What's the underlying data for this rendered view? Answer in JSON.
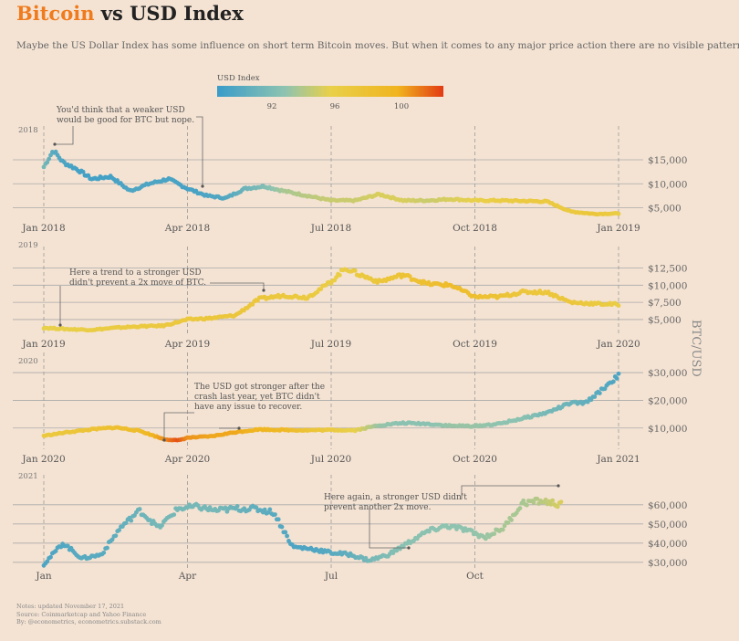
{
  "title": {
    "part1": "Bitcoin",
    "part2": " vs USD Index"
  },
  "subtitle": "Maybe the US Dollar Index has some influence on short term Bitcoin moves. But when it comes to any major price action there are no visible patterns.",
  "legend": {
    "title": "USD Index",
    "ticks": [
      "92",
      "96",
      "100"
    ],
    "colors": [
      "#3a9cc9",
      "#8ec3b0",
      "#e9d04a",
      "#f0b41f",
      "#e23a12"
    ]
  },
  "y_axis_label": "BTC/USD",
  "notes": [
    "Notes: updated November 17, 2021",
    "Source: Coinmarketcap and Yahoo Finance",
    "By: @econometrics, econometrics.substack.com"
  ],
  "chart_data": [
    {
      "type": "scatter",
      "year": "2018",
      "x_ticks": [
        "Jan 2018",
        "Apr 2018",
        "Jul 2018",
        "Oct 2018",
        "Jan 2019"
      ],
      "y_ticks": [
        "$5,000",
        "$10,000",
        "$15,000"
      ],
      "y_tick_values": [
        5000,
        10000,
        15000
      ],
      "ylim": [
        3000,
        19000
      ],
      "annotation": "You'd think that a weaker USD would be good for BTC but nope.",
      "annotation_lines": [
        "You'd think that a weaker USD",
        "would be good for BTC but nope."
      ],
      "series": [
        {
          "name": "BTC/USD",
          "x_month": [
            0,
            0.2,
            0.4,
            0.7,
            1.0,
            1.4,
            1.8,
            2.2,
            2.6,
            3.0,
            3.4,
            3.8,
            4.2,
            4.6,
            5.0,
            5.5,
            6.0,
            6.5,
            7.0,
            7.5,
            8.0,
            8.5,
            9.0,
            9.5,
            10.0,
            10.5,
            11.0,
            11.5,
            12.0
          ],
          "values": [
            13500,
            17000,
            14500,
            13000,
            11000,
            11500,
            8500,
            10000,
            11000,
            9000,
            7500,
            7000,
            9000,
            9500,
            8500,
            7500,
            6500,
            6500,
            7800,
            6500,
            6500,
            6800,
            6500,
            6500,
            6400,
            6300,
            4200,
            3700,
            3800
          ],
          "usd_index": [
            92,
            90.5,
            90,
            89.5,
            89.5,
            89.5,
            90,
            90,
            89.8,
            89.6,
            90,
            90.2,
            91.5,
            92.5,
            94,
            94.5,
            95,
            95,
            95.5,
            95.5,
            95,
            95.5,
            96,
            96.5,
            97,
            97,
            97,
            97.5,
            96.5
          ]
        }
      ]
    },
    {
      "type": "scatter",
      "year": "2019",
      "x_ticks": [
        "Jan 2019",
        "Apr 2019",
        "Jul 2019",
        "Oct 2019",
        "Jan 2020"
      ],
      "y_ticks": [
        "$5,000",
        "$7,500",
        "$10,000",
        "$12,500"
      ],
      "y_tick_values": [
        5000,
        7500,
        10000,
        12500
      ],
      "ylim": [
        3000,
        13500
      ],
      "annotation": "Here a trend to a stronger USD didn't prevent a 2x move of BTC.",
      "annotation_lines": [
        "Here a trend to a stronger USD",
        "didn't prevent a 2x move of BTC."
      ],
      "series": [
        {
          "name": "BTC/USD",
          "x_month": [
            0,
            0.5,
            1.0,
            1.5,
            2.0,
            2.5,
            3.0,
            3.5,
            4.0,
            4.5,
            5.0,
            5.5,
            6.0,
            6.3,
            6.6,
            7.0,
            7.5,
            8.0,
            8.5,
            9.0,
            9.5,
            10.0,
            10.5,
            11.0,
            11.5,
            12.0
          ],
          "values": [
            3800,
            3600,
            3500,
            3800,
            4000,
            4100,
            5000,
            5200,
            5600,
            8000,
            8500,
            8200,
            10500,
            12500,
            11500,
            10500,
            11500,
            10200,
            10000,
            8300,
            8300,
            9000,
            9000,
            7500,
            7300,
            7200
          ],
          "usd_index": [
            96,
            96.2,
            96.5,
            96.8,
            97,
            97.2,
            97.2,
            97.5,
            97.5,
            97.5,
            97.2,
            97,
            96.5,
            96.5,
            97,
            97.5,
            98,
            98.5,
            99,
            98.5,
            98,
            97.5,
            97.5,
            97.5,
            97,
            96.5
          ]
        }
      ]
    },
    {
      "type": "scatter",
      "year": "2020",
      "x_ticks": [
        "Jan 2020",
        "Apr 2020",
        "Jul 2020",
        "Oct 2020",
        "Jan 2021"
      ],
      "y_ticks": [
        "$10,000",
        "$20,000",
        "$30,000"
      ],
      "y_tick_values": [
        10000,
        20000,
        30000
      ],
      "ylim": [
        3000,
        32000
      ],
      "annotation": "The USD got stronger after the crash last year, yet BTC didn't have any issue to recover.",
      "annotation_lines": [
        "The USD got stronger after the",
        "crash last year, yet BTC didn't",
        "have any issue to recover."
      ],
      "series": [
        {
          "name": "BTC/USD",
          "x_month": [
            0,
            0.5,
            1.0,
            1.5,
            2.0,
            2.5,
            2.8,
            3.0,
            3.5,
            4.0,
            4.5,
            5.0,
            5.5,
            6.0,
            6.5,
            7.0,
            7.5,
            8.0,
            8.5,
            9.0,
            9.5,
            10.0,
            10.5,
            11.0,
            11.3,
            11.6,
            12.0
          ],
          "values": [
            7200,
            8500,
            9500,
            10200,
            9000,
            6000,
            5500,
            6500,
            7000,
            8500,
            9500,
            9300,
            9200,
            9300,
            9200,
            11000,
            11800,
            11500,
            10800,
            10700,
            11500,
            13500,
            15500,
            19000,
            19000,
            23000,
            29000
          ],
          "usd_index": [
            97,
            97.5,
            98,
            98.5,
            99,
            101,
            102.5,
            101,
            100.5,
            100.5,
            100,
            99.5,
            98,
            97,
            96,
            93.5,
            93,
            93,
            93.5,
            93.5,
            93.2,
            93,
            92,
            91.5,
            91,
            90.5,
            90
          ]
        }
      ]
    },
    {
      "type": "scatter",
      "year": "2021",
      "x_ticks": [
        "Jan",
        "Apr",
        "Jul",
        "Oct"
      ],
      "y_ticks": [
        "$30,000",
        "$40,000",
        "$50,000",
        "$60,000"
      ],
      "y_tick_values": [
        30000,
        40000,
        50000,
        60000
      ],
      "ylim": [
        28000,
        68000
      ],
      "annotation": "Here again, a stronger USD didn't prevent another 2x move.",
      "annotation_lines": [
        "Here again, a stronger USD didn't",
        "prevent another 2x move."
      ],
      "series": [
        {
          "name": "BTC/USD",
          "x_month": [
            0,
            0.4,
            0.8,
            1.2,
            1.6,
            2.0,
            2.4,
            2.8,
            3.2,
            3.6,
            4.0,
            4.4,
            4.8,
            5.2,
            5.6,
            6.0,
            6.4,
            6.8,
            7.2,
            7.6,
            8.0,
            8.4,
            8.8,
            9.2,
            9.6,
            10.0,
            10.4,
            10.8
          ],
          "values": [
            29000,
            40000,
            32000,
            34000,
            48000,
            57000,
            48000,
            58000,
            59000,
            57000,
            58000,
            58000,
            56000,
            38000,
            37000,
            35000,
            34000,
            31000,
            34000,
            40000,
            46000,
            49000,
            47000,
            43000,
            48000,
            61000,
            62000,
            60000
          ],
          "usd_index": [
            90,
            90.2,
            90.5,
            90.5,
            91,
            91.5,
            92,
            92,
            92,
            92,
            91.5,
            91,
            90.5,
            90,
            90,
            90.5,
            91,
            92,
            92.5,
            93,
            93,
            93.2,
            93.2,
            93.5,
            94,
            94,
            94.5,
            95.5
          ]
        }
      ]
    }
  ]
}
